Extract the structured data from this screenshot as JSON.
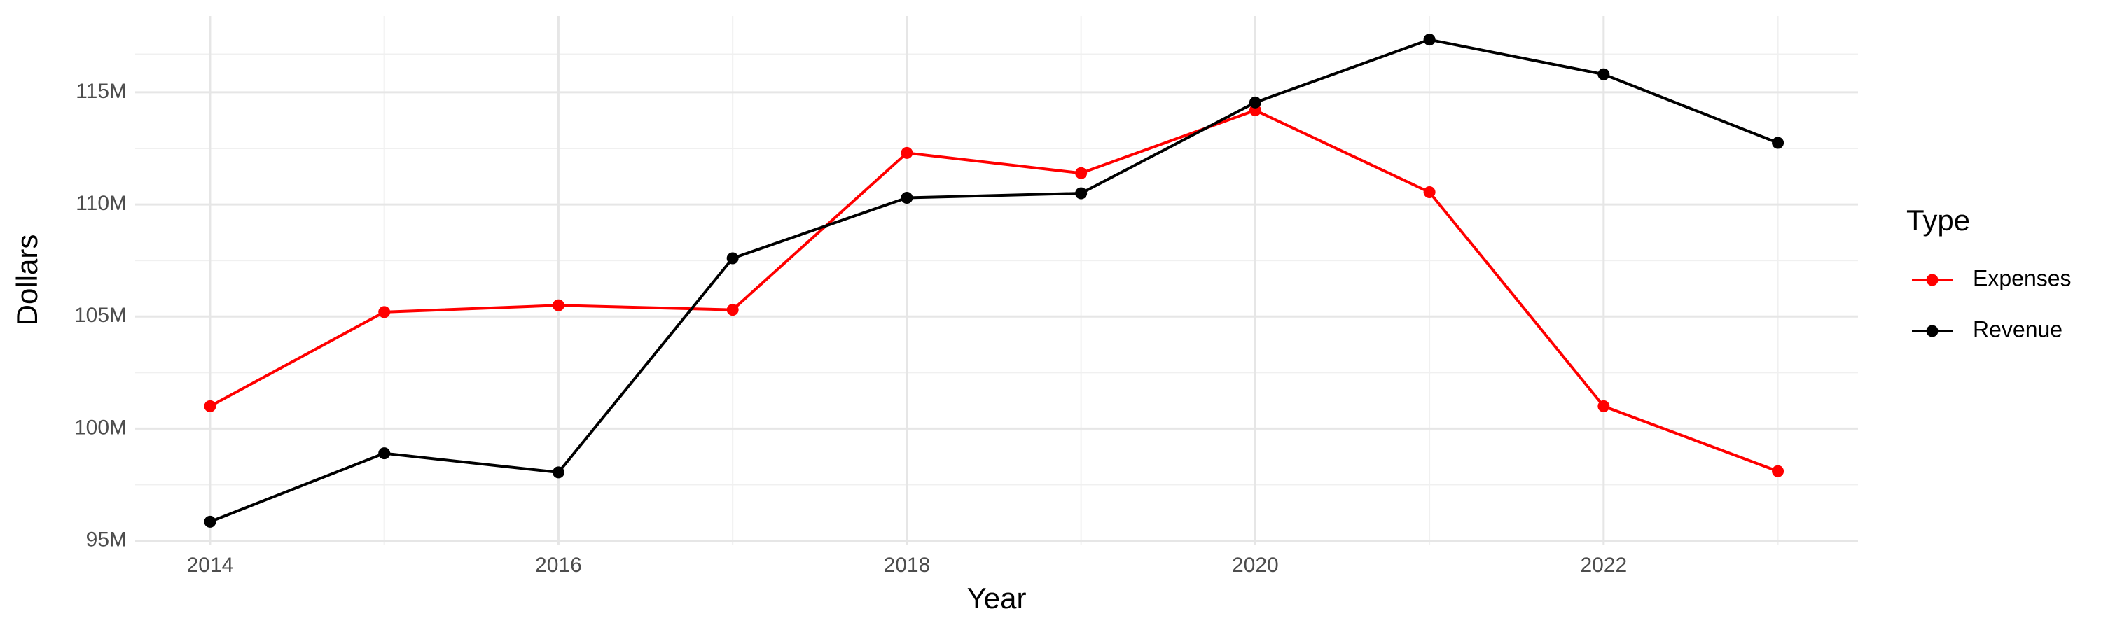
{
  "chart_data": {
    "type": "line",
    "x_label": "Year",
    "y_label": "Dollars",
    "x": [
      2014,
      2015,
      2016,
      2017,
      2018,
      2019,
      2020,
      2021,
      2022,
      2023
    ],
    "series": [
      {
        "name": "Expenses",
        "color": "#ff0000",
        "values": [
          101000000,
          105200000,
          105500000,
          105300000,
          112300000,
          111400000,
          114200000,
          110550000,
          101000000,
          98100000
        ]
      },
      {
        "name": "Revenue",
        "color": "#000000",
        "values": [
          95850000,
          98900000,
          98050000,
          107600000,
          110300000,
          110500000,
          114550000,
          117350000,
          115800000,
          112750000
        ]
      }
    ],
    "xlim": [
      2013.57,
      2023.46
    ],
    "xticks": [
      2014,
      2016,
      2018,
      2020,
      2022
    ],
    "ylim": [
      94800000,
      118400000
    ],
    "yticks": [
      {
        "value": 95000000,
        "label": "95M"
      },
      {
        "value": 100000000,
        "label": "100M"
      },
      {
        "value": 105000000,
        "label": "105M"
      },
      {
        "value": 110000000,
        "label": "110M"
      },
      {
        "value": 115000000,
        "label": "115M"
      }
    ],
    "legend_title": "Type",
    "legend_position": "right",
    "grid": true
  }
}
